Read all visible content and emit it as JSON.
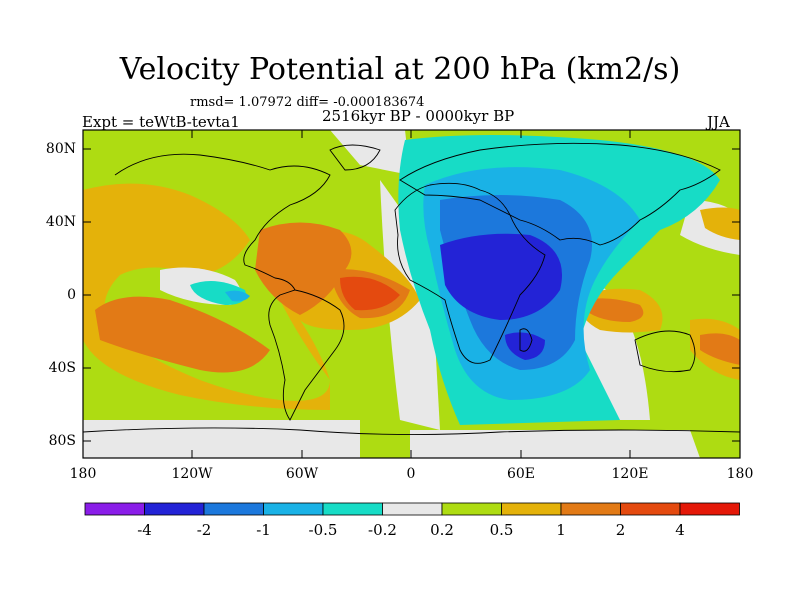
{
  "header": {
    "title": "Velocity Potential at 200 hPa (km2/s)",
    "stats": "rmsd= 1.07972 diff= -0.000183674",
    "left_label": "Expt = teWtB-tevta1",
    "center_label": "2516kyr BP - 0000kyr BP",
    "right_label": "JJA"
  },
  "map": {
    "lat_ticks": [
      "80N",
      "40N",
      "0",
      "40S",
      "80S"
    ],
    "lon_ticks": [
      "180",
      "120W",
      "60W",
      "0",
      "60E",
      "120E",
      "180"
    ]
  },
  "colorbar": {
    "labels": [
      "-4",
      "-2",
      "-1",
      "-0.5",
      "-0.2",
      "0.2",
      "0.5",
      "1",
      "2",
      "4"
    ],
    "colors": [
      "#8a1de8",
      "#2323d6",
      "#1c78dc",
      "#1ab2e6",
      "#17dcc6",
      "#e8e8e8",
      "#aedc12",
      "#e4b20a",
      "#e27a16",
      "#e44a0f",
      "#e41808"
    ]
  },
  "palette": {
    "land_outline": "#000000",
    "frame": "#000000"
  }
}
